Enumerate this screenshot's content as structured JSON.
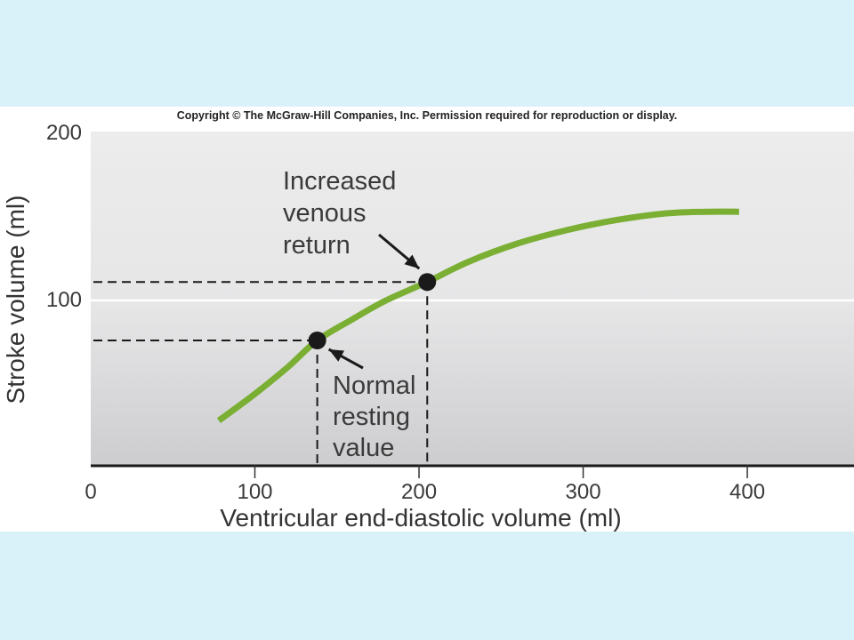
{
  "copyright": "Copyright © The McGraw-Hill Companies, Inc. Permission required for reproduction or display.",
  "chart_data": {
    "type": "line",
    "xlabel": "Ventricular end-diastolic volume (ml)",
    "ylabel": "Stroke volume (ml)",
    "xlim": [
      0,
      465
    ],
    "ylim": [
      0,
      200
    ],
    "x_ticks": [
      0,
      100,
      200,
      300,
      400
    ],
    "y_ticks": [
      100,
      200
    ],
    "x_tick_labels": [
      "0",
      "100",
      "200",
      "300",
      "400"
    ],
    "y_tick_labels": [
      "100",
      "200"
    ],
    "grid": false,
    "series": [
      {
        "color": "#7aaf34",
        "x": [
          78,
          100,
          120,
          138,
          160,
          180,
          205,
          230,
          260,
          290,
          320,
          350,
          375,
          395
        ],
        "y": [
          27,
          43,
          59,
          75,
          88,
          99,
          110,
          122,
          133,
          141,
          147,
          151,
          152,
          152
        ]
      }
    ],
    "points": [
      {
        "name": "normal",
        "x": 138,
        "y": 75
      },
      {
        "name": "increased",
        "x": 205,
        "y": 110
      }
    ],
    "annotations": {
      "increased": [
        "Increased",
        "venous",
        "return"
      ],
      "normal": [
        "Normal",
        "resting",
        "value"
      ]
    }
  },
  "colors": {
    "background": "#d9f1f8",
    "plot_top": "#ebebeb",
    "plot_bottom": "#cfcfd1",
    "curve": "#7aaf34",
    "marker": "#1a1a1a"
  }
}
